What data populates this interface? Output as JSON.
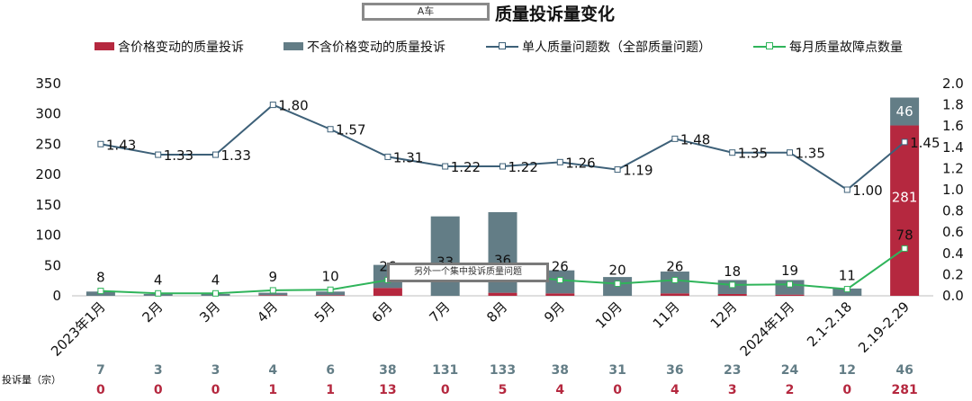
{
  "title_box": "A车",
  "title": "质量投诉量变化",
  "legend": {
    "s1": "含价格变动的质量投诉",
    "s2": "不含价格变动的质量投诉",
    "s3": "单人质量问题数（全部质量问题）",
    "s4": "每月质量故障点数量"
  },
  "note": "另外一个集中投诉质量问题",
  "table_label": "投诉量（宗）",
  "colors": {
    "red": "#b5283f",
    "gray": "#637d86",
    "blue": "#3d6078",
    "green": "#2fb45a"
  },
  "chart_data": {
    "type": "bar+line",
    "categories": [
      "2023年1月",
      "2月",
      "3月",
      "4月",
      "5月",
      "6月",
      "7月",
      "8月",
      "9月",
      "10月",
      "11月",
      "12月",
      "2024年1月",
      "2.1-2.18",
      "2.19-2.29"
    ],
    "series": [
      {
        "name": "含价格变动的质量投诉",
        "type": "bar",
        "axis": "left",
        "values": [
          0,
          0,
          0,
          1,
          1,
          13,
          0,
          5,
          4,
          0,
          4,
          3,
          2,
          0,
          281
        ]
      },
      {
        "name": "不含价格变动的质量投诉",
        "type": "bar",
        "axis": "left",
        "values": [
          7,
          3,
          3,
          4,
          6,
          38,
          131,
          133,
          38,
          31,
          36,
          23,
          24,
          12,
          46
        ]
      },
      {
        "name": "单人质量问题数（全部质量问题）",
        "type": "line",
        "axis": "right",
        "values": [
          1.43,
          1.33,
          1.33,
          1.8,
          1.57,
          1.31,
          1.22,
          1.22,
          1.26,
          1.19,
          1.48,
          1.35,
          1.35,
          1.0,
          1.45
        ]
      },
      {
        "name": "每月质量故障点数量",
        "type": "line",
        "axis": "left",
        "values": [
          8,
          4,
          4,
          9,
          10,
          26,
          33,
          36,
          26,
          20,
          26,
          18,
          19,
          11,
          78
        ]
      }
    ],
    "line_labels_blue": [
      "1.43",
      "1.33",
      "1.33",
      "1.80",
      "1.57",
      "1.31",
      "1.22",
      "1.22",
      "1.26",
      "1.19",
      "1.48",
      "1.35",
      "1.35",
      "1.00",
      "1.45"
    ],
    "left_axis": {
      "range": [
        0,
        350
      ],
      "ticks": [
        "0",
        "50",
        "100",
        "150",
        "200",
        "250",
        "300",
        "350"
      ]
    },
    "right_axis": {
      "range": [
        0,
        2.0
      ],
      "ticks": [
        "0.0",
        "0.2",
        "0.4",
        "0.6",
        "0.8",
        "1.0",
        "1.2",
        "1.4",
        "1.6",
        "1.8",
        "2.0"
      ]
    },
    "table_row_gray": [
      "7",
      "3",
      "3",
      "4",
      "6",
      "38",
      "131",
      "133",
      "38",
      "31",
      "36",
      "23",
      "24",
      "12",
      "46"
    ],
    "table_row_red": [
      "0",
      "0",
      "0",
      "1",
      "1",
      "13",
      "0",
      "5",
      "4",
      "0",
      "4",
      "3",
      "2",
      "0",
      "281"
    ],
    "bar_labels_last": {
      "red": "281",
      "gray": "46"
    }
  }
}
